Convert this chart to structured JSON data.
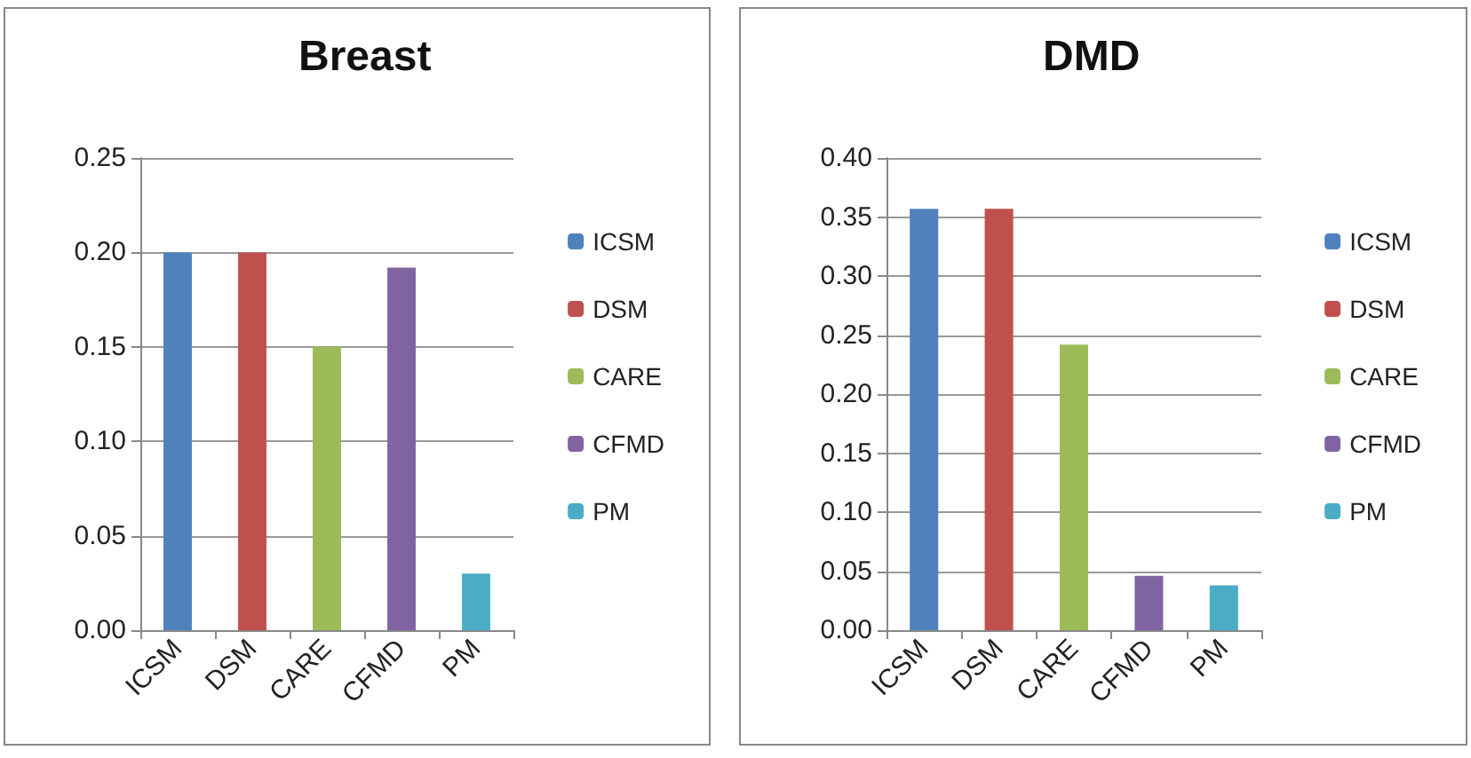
{
  "chart_data": [
    {
      "type": "bar",
      "title": "Breast",
      "categories": [
        "ICSM",
        "DSM",
        "CARE",
        "CFMD",
        "PM"
      ],
      "series": [
        {
          "name": "ICSM",
          "color": "#4f81bd",
          "values": [
            0.2,
            null,
            null,
            null,
            null
          ]
        },
        {
          "name": "DSM",
          "color": "#c0504d",
          "values": [
            null,
            0.2,
            null,
            null,
            null
          ]
        },
        {
          "name": "CARE",
          "color": "#9bbb59",
          "values": [
            null,
            null,
            0.15,
            null,
            null
          ]
        },
        {
          "name": "CFMD",
          "color": "#8064a2",
          "values": [
            null,
            null,
            null,
            0.192,
            null
          ]
        },
        {
          "name": "PM",
          "color": "#4bacc6",
          "values": [
            null,
            null,
            null,
            null,
            0.03
          ]
        }
      ],
      "ylim": [
        0,
        0.25
      ],
      "yticks": [
        {
          "value": 0,
          "label": "0.00"
        },
        {
          "value": 0.05,
          "label": "0.05"
        },
        {
          "value": 0.1,
          "label": "0.10"
        },
        {
          "value": 0.15,
          "label": "0.15"
        },
        {
          "value": 0.2,
          "label": "0.20"
        },
        {
          "value": 0.25,
          "label": "0.25"
        }
      ],
      "grid": "y",
      "legend": "right"
    },
    {
      "type": "bar",
      "title": "DMD",
      "categories": [
        "ICSM",
        "DSM",
        "CARE",
        "CFMD",
        "PM"
      ],
      "series": [
        {
          "name": "ICSM",
          "color": "#4f81bd",
          "values": [
            0.357,
            null,
            null,
            null,
            null
          ]
        },
        {
          "name": "DSM",
          "color": "#c0504d",
          "values": [
            null,
            0.357,
            null,
            null,
            null
          ]
        },
        {
          "name": "CARE",
          "color": "#9bbb59",
          "values": [
            null,
            null,
            0.242,
            null,
            null
          ]
        },
        {
          "name": "CFMD",
          "color": "#8064a2",
          "values": [
            null,
            null,
            null,
            0.046,
            null
          ]
        },
        {
          "name": "PM",
          "color": "#4bacc6",
          "values": [
            null,
            null,
            null,
            null,
            0.038
          ]
        }
      ],
      "ylim": [
        0,
        0.4
      ],
      "yticks": [
        {
          "value": 0,
          "label": "0.00"
        },
        {
          "value": 0.05,
          "label": "0.05"
        },
        {
          "value": 0.1,
          "label": "0.10"
        },
        {
          "value": 0.15,
          "label": "0.15"
        },
        {
          "value": 0.2,
          "label": "0.20"
        },
        {
          "value": 0.25,
          "label": "0.25"
        },
        {
          "value": 0.3,
          "label": "0.30"
        },
        {
          "value": 0.35,
          "label": "0.35"
        },
        {
          "value": 0.4,
          "label": "0.40"
        }
      ],
      "grid": "y",
      "legend": "right"
    }
  ]
}
